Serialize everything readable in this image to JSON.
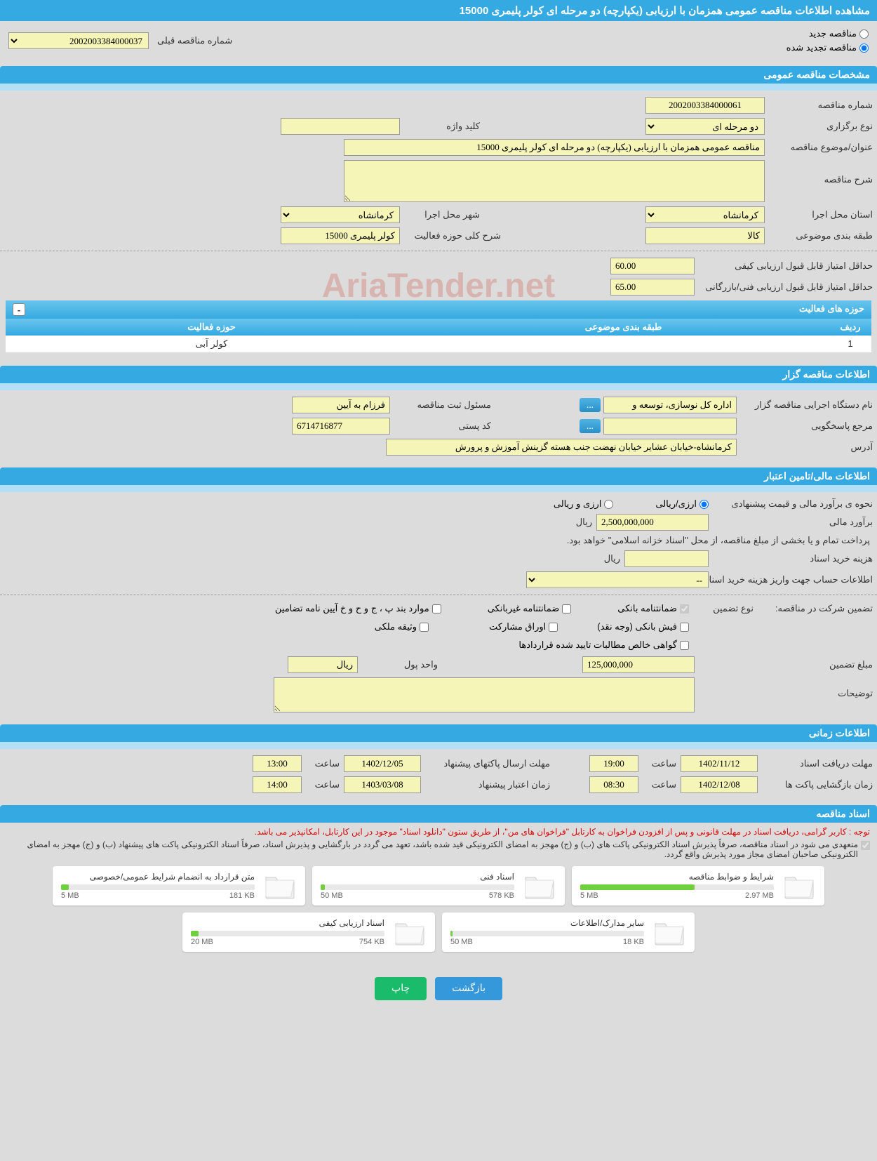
{
  "title": "مشاهده اطلاعات مناقصه عمومی همزمان با ارزیابی (یکپارچه) دو مرحله ای کولر پلیمری 15000",
  "tender_status": {
    "new": "مناقصه جدید",
    "renewed": "مناقصه تجدید شده",
    "prev_label": "شماره مناقصه قبلی",
    "prev_value": "2002003384000037"
  },
  "sections": {
    "general": "مشخصات مناقصه عمومی",
    "issuer": "اطلاعات مناقصه گزار",
    "financial": "اطلاعات مالی/تامین اعتبار",
    "timing": "اطلاعات زمانی",
    "docs": "اسناد مناقصه"
  },
  "general": {
    "number_label": "شماره مناقصه",
    "number": "2002003384000061",
    "type_label": "نوع برگزاری",
    "type": "دو مرحله ای",
    "keyword_label": "کلید واژه",
    "keyword": "",
    "title_label": "عنوان/موضوع مناقصه",
    "title_value": "مناقصه عمومی همزمان با ارزیابی (یکپارچه) دو مرحله ای کولر پلیمری 15000",
    "desc_label": "شرح مناقصه",
    "desc": "",
    "province_label": "استان محل اجرا",
    "province": "کرمانشاه",
    "city_label": "شهر محل اجرا",
    "city": "کرمانشاه",
    "subject_class_label": "طبقه بندی موضوعی",
    "subject_class": "کالا",
    "activity_desc_label": "شرح کلی حوزه فعالیت",
    "activity_desc": "کولر پلیمری 15000",
    "min_qual_label": "حداقل امتیاز قابل قبول ارزیابی کیفی",
    "min_qual": "60.00",
    "min_tech_label": "حداقل امتیاز قابل قبول ارزیابی فنی/بازرگانی",
    "min_tech": "65.00"
  },
  "activity_table": {
    "header": "حوزه های فعالیت",
    "cols": {
      "row": "ردیف",
      "class": "طبقه بندی موضوعی",
      "area": "حوزه فعالیت"
    },
    "rows": [
      {
        "idx": "1",
        "class": "",
        "area": "کولر آبی"
      }
    ]
  },
  "issuer": {
    "exec_label": "نام دستگاه اجرایی مناقصه گزار",
    "exec": "اداره کل نوسازی، توسعه و",
    "reg_mgr_label": "مسئول ثبت مناقصه",
    "reg_mgr": "فرزام به آیین",
    "resp_label": "مرجع پاسخگویی",
    "resp": "",
    "postal_label": "کد پستی",
    "postal": "6714716877",
    "address_label": "آدرس",
    "address": "کرمانشاه-خیابان عشایر خیابان نهضت جنب هسته گزینش آموزش و پرورش"
  },
  "financial": {
    "method_label": "نحوه ی برآورد مالی و قیمت پیشنهادی",
    "method_rial": "ارزی/ریالی",
    "method_both": "ارزی و ریالی",
    "estimate_label": "برآورد مالی",
    "estimate": "2,500,000,000",
    "currency": "ریال",
    "note": "پرداخت تمام و یا بخشی از مبلغ مناقصه، از محل \"اسناد خزانه اسلامی\" خواهد بود.",
    "fee_label": "هزینه خرید اسناد",
    "fee": "",
    "account_label": "اطلاعات حساب جهت واریز هزینه خرید اسناد",
    "account": "--"
  },
  "guarantee": {
    "header": "تضمین شرکت در مناقصه:",
    "type_label": "نوع تضمین",
    "opts": {
      "bank": "ضمانتنامه بانکی",
      "nonbank": "ضمانتنامه غیربانکی",
      "rules": "موارد بند پ ، ج و ح و خ آیین نامه تضامین",
      "cash": "فیش بانکی (وجه نقد)",
      "bonds": "اوراق مشارکت",
      "property": "وثیقه ملکی",
      "claims": "گواهی خالص مطالبات تایید شده قراردادها"
    },
    "amount_label": "مبلغ تضمین",
    "amount": "125,000,000",
    "unit_label": "واحد پول",
    "unit": "ریال",
    "notes_label": "توضیحات",
    "notes": ""
  },
  "timing": {
    "receive_deadline_label": "مهلت دریافت اسناد",
    "receive_date": "1402/11/12",
    "receive_time": "19:00",
    "open_label": "زمان بازگشایی پاکت ها",
    "open_date": "1402/12/08",
    "open_time": "08:30",
    "send_deadline_label": "مهلت ارسال پاکتهای پیشنهاد",
    "send_date": "1402/12/05",
    "send_time": "13:00",
    "validity_label": "زمان اعتبار پیشنهاد",
    "validity_date": "1403/03/08",
    "validity_time": "14:00",
    "time_label": "ساعت"
  },
  "docs": {
    "notice1": "توجه : کاربر گرامی، دریافت اسناد در مهلت قانونی و پس از افزودن فراخوان به کارتابل \"فراخوان های من\"، از طریق ستون \"دانلود اسناد\" موجود در این کارتابل، امکانپذیر می باشد.",
    "notice2": "منعهدی می شود در اسناد مناقصه، صرفاً پذیرش اسناد الکترونیکی پاکت های (ب) و (ج) مهجز به امضای الکترونیکی قید شده باشد، تعهد می گردد در بارگشایی و پذیرش اسناد، صرفاً اسناد الکترونیکی پاکت های پیشنهاد (ب) و (ج) مهجز به امضای الکترونیکی صاحبان امضای مجاز مورد پذیرش واقع گردد.",
    "files": [
      {
        "name": "شرایط و ضوابط مناقصه",
        "used": "2.97 MB",
        "total": "5 MB",
        "pct": 59
      },
      {
        "name": "اسناد فنی",
        "used": "578 KB",
        "total": "50 MB",
        "pct": 2
      },
      {
        "name": "متن قرارداد به انضمام شرایط عمومی/خصوصی",
        "used": "181 KB",
        "total": "5 MB",
        "pct": 4
      },
      {
        "name": "سایر مدارک/اطلاعات",
        "used": "18 KB",
        "total": "50 MB",
        "pct": 1
      },
      {
        "name": "اسناد ارزیابی کیفی",
        "used": "754 KB",
        "total": "20 MB",
        "pct": 4
      }
    ]
  },
  "buttons": {
    "back": "بازگشت",
    "print": "چاپ",
    "browse": "..."
  },
  "colors": {
    "primary": "#35a9e1",
    "light": "#b3e0f7",
    "field_bg": "#f5f5b8",
    "page_bg": "#dcdcdc",
    "green": "#1abc6b",
    "blue_btn": "#3498db",
    "red": "#d00000"
  },
  "watermark": "AriaTender.net"
}
